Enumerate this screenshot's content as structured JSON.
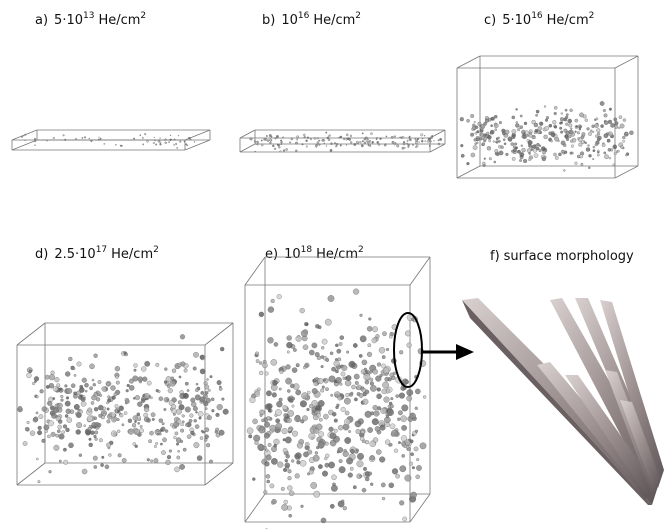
{
  "panels": [
    {
      "label": "a)",
      "base": "5·10",
      "exponent": "13",
      "unit": "He/cm",
      "unit_exponent": "2"
    },
    {
      "label": "b)",
      "base": "10",
      "exponent": "16",
      "unit": "He/cm",
      "unit_exponent": "2"
    },
    {
      "label": "c)",
      "base": "5·10",
      "exponent": "16",
      "unit": "He/cm",
      "unit_exponent": "2"
    },
    {
      "label": "d)",
      "base": "2.5·10",
      "exponent": "17",
      "unit": "He/cm",
      "unit_exponent": "2"
    },
    {
      "label": "e)",
      "base": "10",
      "exponent": "18",
      "unit": "He/cm",
      "unit_exponent": "2"
    },
    {
      "label": "f)",
      "caption": "surface morphology"
    }
  ]
}
